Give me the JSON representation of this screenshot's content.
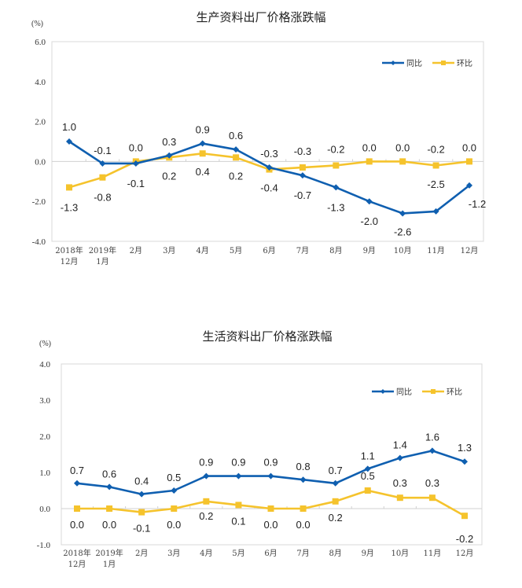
{
  "chart_data": [
    {
      "type": "line",
      "title": "生产资料出厂价格涨跌幅",
      "ylabel": "(%)",
      "xlabel": "",
      "ylim": [
        -4.0,
        6.0
      ],
      "yticks": [
        "6.0",
        "4.0",
        "2.0",
        "0.0",
        "-2.0",
        "-4.0"
      ],
      "ytick_values": [
        6,
        4,
        2,
        0,
        -2,
        -4
      ],
      "categories": [
        [
          "2018年",
          "12月"
        ],
        [
          "2019年",
          "1月"
        ],
        [
          "2月"
        ],
        [
          "3月"
        ],
        [
          "4月"
        ],
        [
          "5月"
        ],
        [
          "6月"
        ],
        [
          "7月"
        ],
        [
          "8月"
        ],
        [
          "9月"
        ],
        [
          "10月"
        ],
        [
          "11月"
        ],
        [
          "12月"
        ]
      ],
      "legend": "top-right",
      "series": [
        {
          "name": "同比",
          "color": "#0F5FB0",
          "marker": "diamond",
          "values": [
            1.0,
            -0.1,
            -0.1,
            0.3,
            0.9,
            0.6,
            -0.3,
            -0.7,
            -1.3,
            -2.0,
            -2.6,
            -2.5,
            -1.2
          ],
          "labels": [
            "1.0",
            "-0.1",
            "-0.1",
            "0.3",
            "0.9",
            "0.6",
            "-0.3",
            "-0.7",
            "-1.3",
            "-2.0",
            "-2.6",
            "-2.5",
            "-1.2"
          ]
        },
        {
          "name": "环比",
          "color": "#F5C32C",
          "marker": "square",
          "values": [
            -1.3,
            -0.8,
            0.0,
            0.2,
            0.4,
            0.2,
            -0.4,
            -0.3,
            -0.2,
            0.0,
            0.0,
            -0.2,
            0.0
          ],
          "labels": [
            "-1.3",
            "-0.8",
            "0.0",
            "0.2",
            "0.4",
            "0.2",
            "-0.4",
            "-0.3",
            "-0.2",
            "0.0",
            "0.0",
            "-0.2",
            "0.0"
          ]
        }
      ]
    },
    {
      "type": "line",
      "title": "生活资料出厂价格涨跌幅",
      "ylabel": "(%)",
      "xlabel": "",
      "ylim": [
        -1.0,
        4.0
      ],
      "yticks": [
        "4.0",
        "3.0",
        "2.0",
        "1.0",
        "0.0",
        "-1.0"
      ],
      "ytick_values": [
        4,
        3,
        2,
        1,
        0,
        -1
      ],
      "categories": [
        [
          "2018年",
          "12月"
        ],
        [
          "2019年",
          "1月"
        ],
        [
          "2月"
        ],
        [
          "3月"
        ],
        [
          "4月"
        ],
        [
          "5月"
        ],
        [
          "6月"
        ],
        [
          "7月"
        ],
        [
          "8月"
        ],
        [
          "9月"
        ],
        [
          "10月"
        ],
        [
          "11月"
        ],
        [
          "12月"
        ]
      ],
      "legend": "top-right",
      "series": [
        {
          "name": "同比",
          "color": "#0F5FB0",
          "marker": "diamond",
          "values": [
            0.7,
            0.6,
            0.4,
            0.5,
            0.9,
            0.9,
            0.9,
            0.8,
            0.7,
            1.1,
            1.4,
            1.6,
            1.3
          ],
          "labels": [
            "0.7",
            "0.6",
            "0.4",
            "0.5",
            "0.9",
            "0.9",
            "0.9",
            "0.8",
            "0.7",
            "1.1",
            "1.4",
            "1.6",
            "1.3"
          ]
        },
        {
          "name": "环比",
          "color": "#F5C32C",
          "marker": "square",
          "values": [
            0.0,
            0.0,
            -0.1,
            0.0,
            0.2,
            0.1,
            0.0,
            0.0,
            0.2,
            0.5,
            0.3,
            0.3,
            -0.2
          ],
          "labels": [
            "0.0",
            "0.0",
            "-0.1",
            "0.0",
            "0.2",
            "0.1",
            "0.0",
            "0.0",
            "0.2",
            "0.5",
            "0.3",
            "0.3",
            "-0.2"
          ]
        }
      ]
    }
  ]
}
